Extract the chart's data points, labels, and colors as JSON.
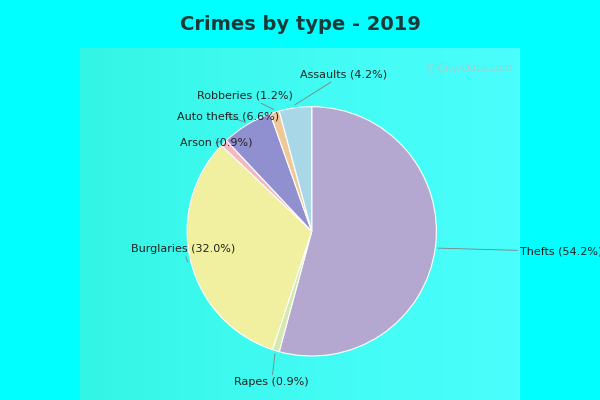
{
  "title": "Crimes by type - 2019",
  "title_fontsize": 14,
  "title_color": "#1a3a3a",
  "title_bg": "#00ffff",
  "chart_bg_top": "#c8ead8",
  "chart_bg_bottom": "#e8f5ee",
  "slices": [
    {
      "label": "Thefts",
      "pct": 54.2,
      "color": "#b5a8d0"
    },
    {
      "label": "Rapes",
      "pct": 0.9,
      "color": "#d4e8b0"
    },
    {
      "label": "Burglaries",
      "pct": 32.0,
      "color": "#f0f0a0"
    },
    {
      "label": "Arson",
      "pct": 0.9,
      "color": "#f4b8c0"
    },
    {
      "label": "Auto thefts",
      "pct": 6.6,
      "color": "#9090d0"
    },
    {
      "label": "Robberies",
      "pct": 1.2,
      "color": "#f0c898"
    },
    {
      "label": "Assaults",
      "pct": 4.2,
      "color": "#a8d8e8"
    }
  ],
  "watermark": "ⓘ City-Data.com",
  "watermark_color": "#b0c8c8",
  "label_fontsize": 8,
  "border_cyan": "#00ffff",
  "border_width": 8
}
